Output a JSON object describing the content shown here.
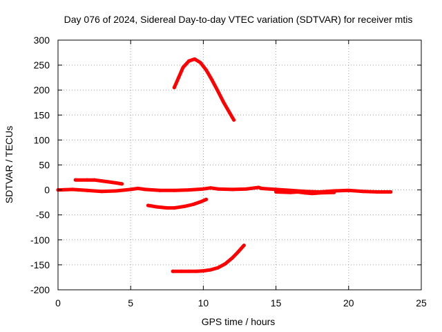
{
  "chart_data": {
    "type": "scatter",
    "title": "Day 076 of 2024, Sidereal Day-to-day VTEC variation (SDTVAR) for receiver mtis",
    "xlabel": "GPS time / hours",
    "ylabel": "SDTVAR / TECUs",
    "xlim": [
      0,
      25
    ],
    "ylim": [
      -200,
      300
    ],
    "xticks": [
      0,
      5,
      10,
      15,
      20,
      25
    ],
    "yticks": [
      -200,
      -150,
      -100,
      -50,
      0,
      50,
      100,
      150,
      200,
      250,
      300
    ],
    "xtick_labels": [
      "0",
      "5",
      "10",
      "15",
      "20",
      "25"
    ],
    "ytick_labels": [
      "-200",
      "-150",
      "-100",
      "-50",
      "0",
      "50",
      "100",
      "150",
      "200",
      "250",
      "300"
    ],
    "grid": true,
    "color": "#ff0000",
    "series": [
      {
        "name": "arc-main",
        "x": [
          0,
          1,
          2,
          3,
          4,
          5,
          5.5,
          6,
          7,
          8,
          9,
          10,
          10.5,
          11,
          12,
          13,
          13.8,
          14,
          15,
          16,
          17,
          18,
          19,
          20,
          21,
          22,
          22.9
        ],
        "y": [
          0,
          1,
          -1,
          -3,
          -2,
          1,
          3,
          1,
          -1,
          -1,
          0,
          2,
          4,
          2,
          1,
          2,
          5,
          3,
          1,
          -1,
          -3,
          -4,
          -2,
          -1,
          -3,
          -4,
          -4
        ]
      },
      {
        "name": "arc-low-right",
        "x": [
          15,
          16,
          16.5,
          17,
          17.5,
          18,
          19
        ],
        "y": [
          -4,
          -5,
          -4,
          -6,
          -7,
          -6,
          -5
        ]
      },
      {
        "name": "arc-left-high",
        "x": [
          1.2,
          2,
          2.5,
          3,
          3.5,
          4,
          4.4
        ],
        "y": [
          20,
          20,
          20,
          18,
          16,
          14,
          12
        ]
      },
      {
        "name": "arc-mid-neg",
        "x": [
          6.2,
          6.8,
          7.5,
          8,
          8.7,
          9.3,
          9.8,
          10.2
        ],
        "y": [
          -31,
          -34,
          -36,
          -36,
          -33,
          -29,
          -24,
          -19
        ]
      },
      {
        "name": "arc-peak",
        "x": [
          8,
          8.3,
          8.6,
          9,
          9.4,
          9.8,
          10.2,
          10.6,
          11,
          11.4,
          11.8,
          12.1
        ],
        "y": [
          205,
          225,
          245,
          258,
          262,
          255,
          240,
          220,
          198,
          175,
          155,
          140
        ]
      },
      {
        "name": "arc-trough",
        "x": [
          7.9,
          8.5,
          9,
          9.5,
          10,
          10.5,
          11,
          11.5,
          12,
          12.4,
          12.8
        ],
        "y": [
          -163,
          -163,
          -163,
          -163,
          -162,
          -160,
          -156,
          -148,
          -136,
          -124,
          -111
        ]
      }
    ]
  }
}
